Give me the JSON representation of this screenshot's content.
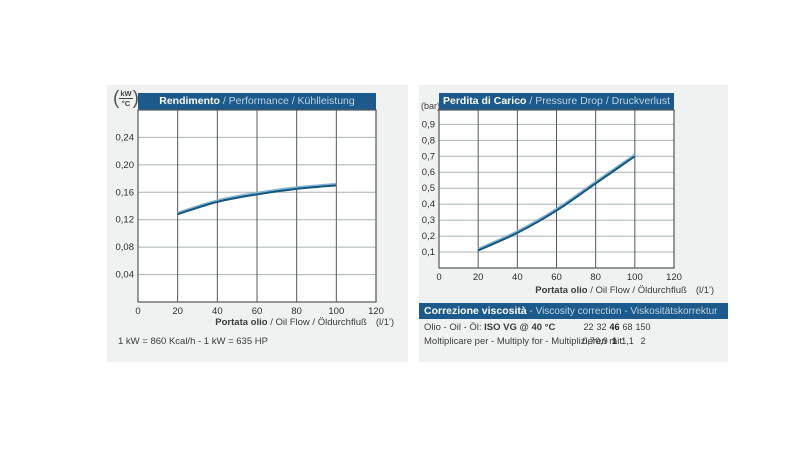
{
  "colors": {
    "panel_bg": "#f0f1f1",
    "header_bg": "#1c5a8c",
    "header_text": "#ffffff",
    "header_text_secondary": "#bdd2e2",
    "grid_v": "#54585b",
    "grid_h": "#a9b0b4",
    "plot_bg": "#ffffff",
    "curve": "#14577f",
    "curve_highlight": "#82b4d2",
    "tick_text": "#2e2e2e"
  },
  "chart_data": [
    {
      "type": "line",
      "title_bold": "Rendimento",
      "title_rest": " / Performance / Kühlleistung",
      "y_unit_numerator": "kW",
      "y_unit_denominator": "°C",
      "xlabel_bold": "Portata olio",
      "xlabel_rest": " / Oil Flow / Öldurchfluß",
      "xlabel_unit": "(l/1')",
      "xlim": [
        0,
        120
      ],
      "ylim": [
        0,
        0.28
      ],
      "xticks": [
        0,
        20,
        40,
        60,
        80,
        100,
        120
      ],
      "yticks": [
        0.04,
        0.08,
        0.12,
        0.16,
        0.2,
        0.24
      ],
      "ytick_labels": [
        "0,04",
        "0,08",
        "0,12",
        "0,16",
        "0,20",
        "0,24"
      ],
      "grid": true,
      "legend": "none",
      "x": [
        20,
        40,
        60,
        80,
        100
      ],
      "y": [
        0.128,
        0.146,
        0.157,
        0.165,
        0.17
      ]
    },
    {
      "type": "line",
      "title_bold": "Perdita di Carico",
      "title_rest": " / Pressure Drop / Druckverlust",
      "y_unit": "(bar)",
      "xlabel_bold": "Portata olio",
      "xlabel_rest": " / Oil Flow / Öldurchfluß",
      "xlabel_unit": "(l/1')",
      "xlim": [
        0,
        120
      ],
      "ylim": [
        0,
        0.99
      ],
      "xticks": [
        0,
        20,
        40,
        60,
        80,
        100,
        120
      ],
      "yticks": [
        0.1,
        0.2,
        0.3,
        0.4,
        0.5,
        0.6,
        0.7,
        0.8,
        0.9
      ],
      "ytick_labels": [
        "0,1",
        "0,2",
        "0,3",
        "0,4",
        "0,5",
        "0,6",
        "0,7",
        "0,8",
        "0,9"
      ],
      "grid": true,
      "legend": "none",
      "x": [
        20,
        40,
        60,
        80,
        100
      ],
      "y": [
        0.11,
        0.22,
        0.36,
        0.53,
        0.7
      ]
    }
  ],
  "footnote": "1 kW = 860 Kcal/h  - 1 kW = 635 HP",
  "viscosity": {
    "header_bold": "Correzione viscosità",
    "header_rest": " -  Viscosity correction  -  Viskositätskorrektur",
    "row1_label_normal": "Olio - Oil - Öl: ",
    "row1_label_bold": "ISO VG @ 40 °C",
    "row1_values": [
      "22",
      "32",
      "46",
      "68",
      "150"
    ],
    "row1_bold_index": 2,
    "row2_label": "Moltiplicare per - Multiply for - Multiplizieren mit:",
    "row2_values": [
      "0,7",
      "0,9",
      "1",
      "1,1",
      "2"
    ],
    "row2_bold_index": 2
  }
}
